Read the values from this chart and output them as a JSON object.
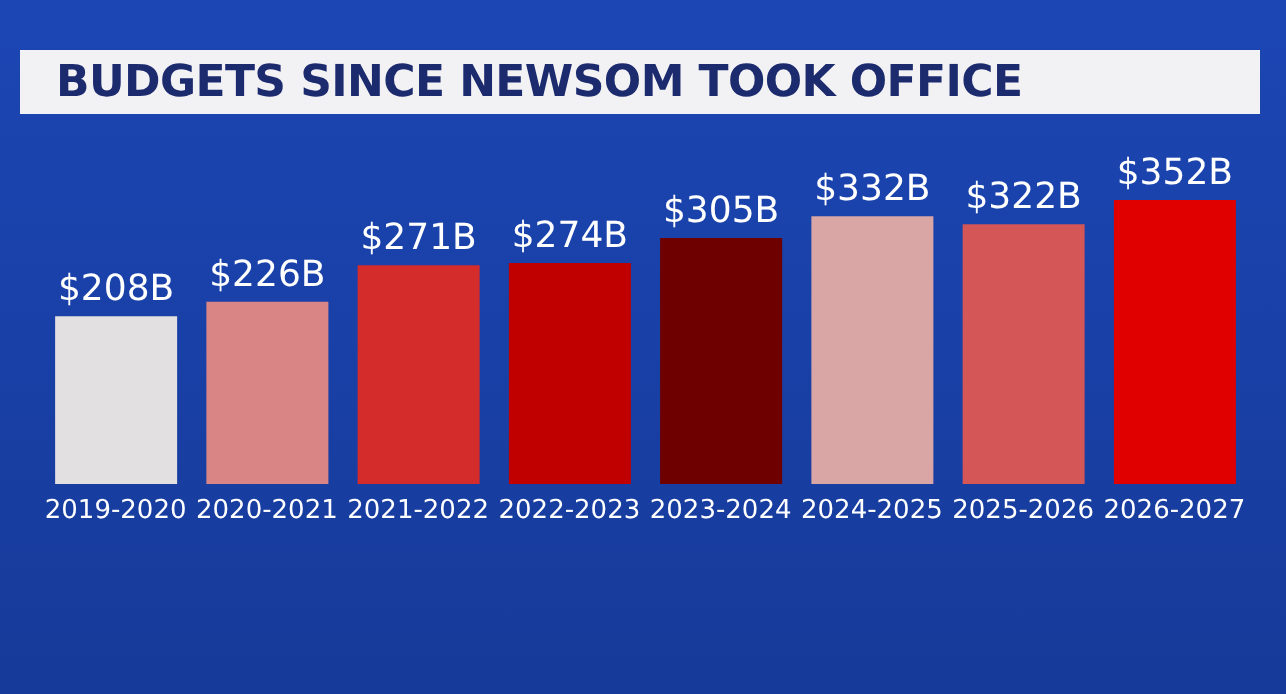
{
  "chart_data": {
    "type": "bar",
    "title": "BUDGETS SINCE NEWSOM TOOK OFFICE",
    "categories": [
      "2019-2020",
      "2020-2021",
      "2021-2022",
      "2022-2023",
      "2023-2024",
      "2024-2025",
      "2025-2026",
      "2026-2027"
    ],
    "values": [
      208,
      226,
      271,
      274,
      305,
      332,
      322,
      352
    ],
    "value_labels": [
      "$208B",
      "$226B",
      "$271B",
      "$274B",
      "$305B",
      "$332B",
      "$322B",
      "$352B"
    ],
    "colors": [
      "#e2e0e0",
      "#d98585",
      "#d42b2b",
      "#c00000",
      "#6e0000",
      "#d9a5a5",
      "#d45656",
      "#e00000"
    ]
  }
}
